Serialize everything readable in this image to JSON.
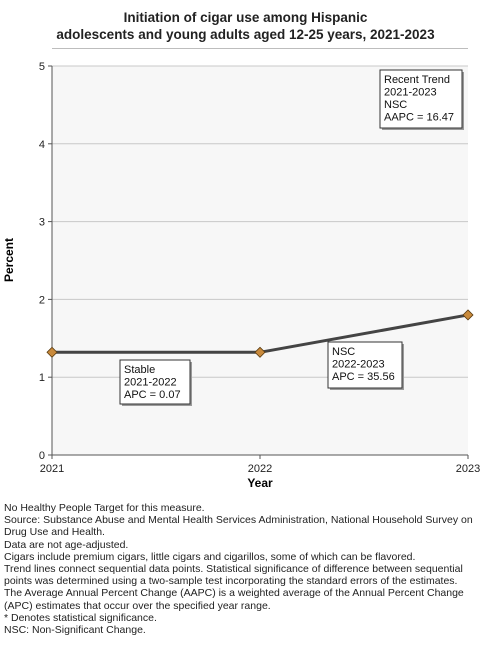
{
  "title_line1": "Initiation of cigar use among Hispanic",
  "title_line2": "adolescents and young adults aged 12-25 years, 2021-2023",
  "chart_data": {
    "type": "line",
    "x": [
      "2021",
      "2022",
      "2023"
    ],
    "series": [
      {
        "values": [
          1.32,
          1.32,
          1.8
        ],
        "color": "#444444",
        "marker_color": "#c98a3c"
      }
    ],
    "xlabel": "Year",
    "ylabel": "Percent",
    "ylim": [
      0,
      5
    ],
    "yticks": [
      "0",
      "1",
      "2",
      "3",
      "4",
      "5"
    ],
    "xticks": [
      "2021",
      "2022",
      "2023"
    ],
    "grid": true,
    "background": "#f7f7f7",
    "annotations": [
      {
        "lines": [
          "Stable",
          "2021-2022",
          "APC =  0.07"
        ]
      },
      {
        "lines": [
          "NSC",
          "2022-2023",
          "APC = 35.56"
        ]
      },
      {
        "lines": [
          "Recent Trend",
          "2021-2023",
          "NSC",
          "AAPC = 16.47"
        ]
      }
    ]
  },
  "notes": [
    "No Healthy People Target for this measure.",
    "Source: Substance Abuse and Mental Health Services Administration, National Household Survey on Drug Use and Health.",
    "Data are not age-adjusted.",
    "Cigars include premium cigars, little cigars and cigarillos, some of which can be flavored.",
    "Trend lines connect sequential data points. Statistical significance of difference between sequential points was determined using a two-sample test incorporating the standard errors of the estimates.",
    "The Average Annual Percent Change (AAPC) is a weighted average of the Annual Percent Change (APC) estimates that occur over the specified year range.",
    "* Denotes statistical significance.",
    "NSC: Non-Significant Change."
  ]
}
